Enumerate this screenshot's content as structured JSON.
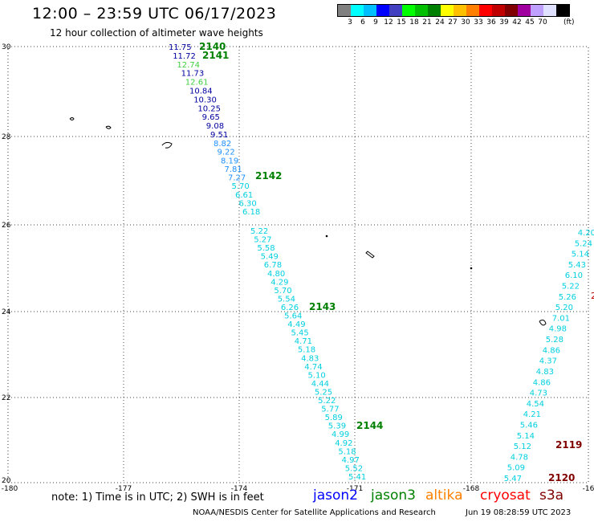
{
  "header": {
    "title": "12:00 – 23:59 UTC 06/17/2023",
    "subtitle": "12 hour collection of altimeter wave heights"
  },
  "colorbar": {
    "colors": [
      "#808080",
      "#00ffff",
      "#00bfff",
      "#0000ff",
      "#4040c0",
      "#00ff00",
      "#00c000",
      "#008000",
      "#ffff00",
      "#ffc000",
      "#ff8000",
      "#ff0000",
      "#c00000",
      "#800000",
      "#a000a0",
      "#c0a0ff",
      "#e0e0ff",
      "#000000"
    ],
    "tick_labels": [
      "3",
      "6",
      "9",
      "12",
      "15",
      "18",
      "21",
      "24",
      "27",
      "30",
      "33",
      "36",
      "39",
      "42",
      "45",
      "70"
    ],
    "unit": "(ft)"
  },
  "map": {
    "lon_ticks": [
      "-180",
      "-177",
      "-174",
      "-171",
      "-168",
      "-16"
    ],
    "lat_ticks": [
      "30",
      "28",
      "26",
      "24",
      "22",
      "20"
    ],
    "passes": [
      {
        "id": "2140",
        "color": "#008000"
      },
      {
        "id": "2141",
        "color": "#008000"
      },
      {
        "id": "2142",
        "color": "#008000"
      },
      {
        "id": "2143",
        "color": "#008000"
      },
      {
        "id": "2144",
        "color": "#008000"
      },
      {
        "id": "2119",
        "color": "#800000"
      },
      {
        "id": "2120",
        "color": "#800000"
      }
    ],
    "observations": [
      {
        "v": "11.75",
        "color": "#0000a0"
      },
      {
        "v": "11.72",
        "color": "#0000a0"
      },
      {
        "v": "12.74",
        "color": "#40d040"
      },
      {
        "v": "11.73",
        "color": "#0000a0"
      },
      {
        "v": "12.61",
        "color": "#40d040"
      },
      {
        "v": "10.84",
        "color": "#0000a0"
      },
      {
        "v": "10.30",
        "color": "#0000a0"
      },
      {
        "v": "10.25",
        "color": "#0000a0"
      },
      {
        "v": "9.65",
        "color": "#0000a0"
      },
      {
        "v": "9.08",
        "color": "#0000a0"
      },
      {
        "v": "9.51",
        "color": "#0000a0"
      },
      {
        "v": "8.82",
        "color": "#1e90ff"
      },
      {
        "v": "9.22",
        "color": "#1e90ff"
      },
      {
        "v": "8.19",
        "color": "#1e90ff"
      },
      {
        "v": "7.81",
        "color": "#1e90ff"
      },
      {
        "v": "7.27",
        "color": "#1e90ff"
      },
      {
        "v": "5.70",
        "color": "#00d0e0"
      },
      {
        "v": "6.61",
        "color": "#00d0e0"
      },
      {
        "v": "6.30",
        "color": "#00d0e0"
      },
      {
        "v": "6.18",
        "color": "#00d0e0"
      },
      {
        "v": "5.22",
        "color": "#00d0e0"
      },
      {
        "v": "5.27",
        "color": "#00d0e0"
      },
      {
        "v": "5.58",
        "color": "#00d0e0"
      },
      {
        "v": "5.49",
        "color": "#00d0e0"
      },
      {
        "v": "6.78",
        "color": "#00d0e0"
      },
      {
        "v": "4.80",
        "color": "#00d0e0"
      },
      {
        "v": "4.29",
        "color": "#00d0e0"
      },
      {
        "v": "5.70",
        "color": "#00d0e0"
      },
      {
        "v": "5.54",
        "color": "#00d0e0"
      },
      {
        "v": "6.26",
        "color": "#00d0e0"
      },
      {
        "v": "5.64",
        "color": "#00d0e0"
      },
      {
        "v": "4.49",
        "color": "#00d0e0"
      },
      {
        "v": "5.45",
        "color": "#00d0e0"
      },
      {
        "v": "4.71",
        "color": "#00d0e0"
      },
      {
        "v": "5.18",
        "color": "#00d0e0"
      },
      {
        "v": "4.83",
        "color": "#00d0e0"
      },
      {
        "v": "4.74",
        "color": "#00d0e0"
      },
      {
        "v": "5.10",
        "color": "#00d0e0"
      },
      {
        "v": "4.44",
        "color": "#00d0e0"
      },
      {
        "v": "5.25",
        "color": "#00d0e0"
      },
      {
        "v": "5.22",
        "color": "#00d0e0"
      },
      {
        "v": "5.77",
        "color": "#00d0e0"
      },
      {
        "v": "5.89",
        "color": "#00d0e0"
      },
      {
        "v": "5.39",
        "color": "#00d0e0"
      },
      {
        "v": "4.99",
        "color": "#00d0e0"
      },
      {
        "v": "4.92",
        "color": "#00d0e0"
      },
      {
        "v": "5.18",
        "color": "#00d0e0"
      },
      {
        "v": "4.97",
        "color": "#00d0e0"
      },
      {
        "v": "5.52",
        "color": "#00d0e0"
      },
      {
        "v": "5.41",
        "color": "#00d0e0"
      },
      {
        "v": "4.20",
        "color": "#00d0e0"
      },
      {
        "v": "5.24",
        "color": "#00d0e0"
      },
      {
        "v": "5.14",
        "color": "#00d0e0"
      },
      {
        "v": "5.43",
        "color": "#00d0e0"
      },
      {
        "v": "6.10",
        "color": "#00d0e0"
      },
      {
        "v": "5.22",
        "color": "#00d0e0"
      },
      {
        "v": "5.26",
        "color": "#00d0e0"
      },
      {
        "v": "5.20",
        "color": "#00d0e0"
      },
      {
        "v": "7.01",
        "color": "#00d0e0"
      },
      {
        "v": "4.98",
        "color": "#00d0e0"
      },
      {
        "v": "5.28",
        "color": "#00d0e0"
      },
      {
        "v": "4.86",
        "color": "#00d0e0"
      },
      {
        "v": "4.37",
        "color": "#00d0e0"
      },
      {
        "v": "4.83",
        "color": "#00d0e0"
      },
      {
        "v": "4.86",
        "color": "#00d0e0"
      },
      {
        "v": "4.73",
        "color": "#00d0e0"
      },
      {
        "v": "4.54",
        "color": "#00d0e0"
      },
      {
        "v": "4.21",
        "color": "#00d0e0"
      },
      {
        "v": "5.46",
        "color": "#00d0e0"
      },
      {
        "v": "5.14",
        "color": "#00d0e0"
      },
      {
        "v": "5.12",
        "color": "#00d0e0"
      },
      {
        "v": "4.78",
        "color": "#00d0e0"
      },
      {
        "v": "5.09",
        "color": "#00d0e0"
      },
      {
        "v": "5.47",
        "color": "#00d0e0"
      },
      {
        "v": "5.36",
        "color": "#00d0e0"
      }
    ]
  },
  "footer": {
    "note": "note:  1) Time is in UTC;  2) SWH is in feet",
    "satellites": [
      {
        "name": "jason2",
        "color": "#0000ff"
      },
      {
        "name": "jason3",
        "color": "#008000"
      },
      {
        "name": "altika",
        "color": "#ff8000"
      },
      {
        "name": "cryosat",
        "color": "#ff0000"
      },
      {
        "name": "s3a",
        "color": "#800000"
      }
    ],
    "credit": "NOAA/NESDIS Center for Satellite Applications and Research",
    "timestamp": "Jun 19 08:28:59 UTC 2023"
  }
}
